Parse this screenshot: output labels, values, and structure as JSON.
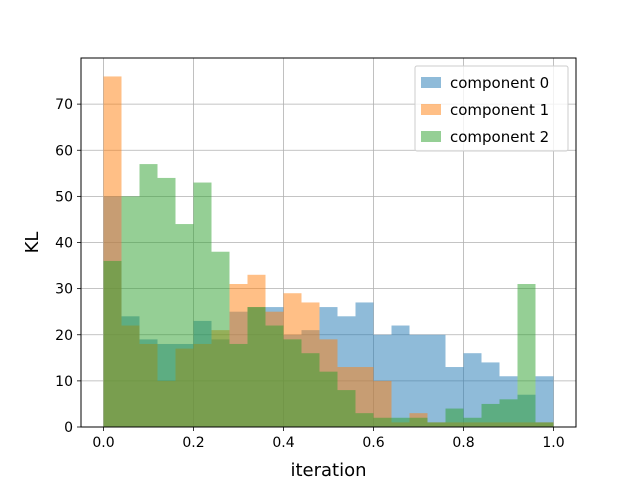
{
  "chart_data": {
    "type": "bar",
    "title": "",
    "xlabel": "iteration",
    "ylabel": "KL",
    "xlim": [
      -0.05,
      1.05
    ],
    "ylim": [
      0,
      80
    ],
    "xticks": [
      0.0,
      0.2,
      0.4,
      0.6,
      0.8,
      1.0
    ],
    "xtick_labels": [
      "0.0",
      "0.2",
      "0.4",
      "0.6",
      "0.8",
      "1.0"
    ],
    "yticks": [
      0,
      10,
      20,
      30,
      40,
      50,
      60,
      70
    ],
    "ytick_labels": [
      "0",
      "10",
      "20",
      "30",
      "40",
      "50",
      "60",
      "70"
    ],
    "grid": true,
    "legend_position": "top-right",
    "bin_edges": [
      0.0,
      0.04,
      0.08,
      0.12,
      0.16,
      0.2,
      0.24,
      0.28,
      0.32,
      0.36,
      0.4,
      0.44,
      0.48,
      0.52,
      0.56,
      0.6,
      0.64,
      0.68,
      0.72,
      0.76,
      0.8,
      0.84,
      0.88,
      0.92,
      0.96,
      1.0
    ],
    "series": [
      {
        "name": "component 0",
        "color": "#1f77b4",
        "alpha": 0.5,
        "values": [
          50,
          24,
          19,
          18,
          18,
          23,
          19,
          25,
          26,
          26,
          20,
          21,
          26,
          24,
          27,
          20,
          22,
          20,
          20,
          13,
          16,
          14,
          11,
          7,
          11
        ]
      },
      {
        "name": "component 1",
        "color": "#ff7f0e",
        "alpha": 0.5,
        "values": [
          76,
          22,
          18,
          10,
          17,
          18,
          21,
          31,
          33,
          25,
          29,
          27,
          19,
          13,
          13,
          10,
          1,
          3,
          1,
          1,
          1,
          1,
          1,
          1,
          1
        ]
      },
      {
        "name": "component 2",
        "color": "#2ca02c",
        "alpha": 0.5,
        "values": [
          36,
          50,
          57,
          54,
          44,
          53,
          38,
          18,
          26,
          22,
          19,
          16,
          12,
          8,
          3,
          2,
          2,
          2,
          1,
          4,
          2,
          5,
          6,
          31,
          1
        ]
      }
    ]
  }
}
